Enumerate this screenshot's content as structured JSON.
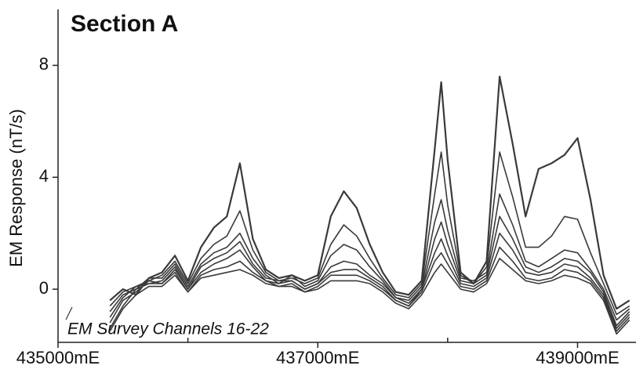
{
  "chart_data": {
    "type": "line",
    "title": "Section A",
    "ylabel": "EM Response (nT/s)",
    "annotation": "EM Survey Channels 16-22",
    "xlim": [
      435000,
      439450
    ],
    "ylim": [
      -1.9,
      10
    ],
    "xticks": [
      {
        "value": 435000,
        "label": "435000mE"
      },
      {
        "value": 437000,
        "label": "437000mE"
      },
      {
        "value": 439000,
        "label": "439000mE"
      }
    ],
    "xminorticks": [
      436000,
      438000
    ],
    "yticks": [
      0,
      4,
      8
    ],
    "color": "#3a3a3a",
    "x": [
      435400,
      435500,
      435600,
      435700,
      435800,
      435900,
      436000,
      436100,
      436200,
      436300,
      436400,
      436500,
      436600,
      436700,
      436800,
      436900,
      437000,
      437100,
      437200,
      437300,
      437400,
      437500,
      437600,
      437700,
      437800,
      437900,
      437950,
      438000,
      438100,
      438200,
      438300,
      438400,
      438500,
      438600,
      438700,
      438800,
      438900,
      439000,
      439100,
      439200,
      439300,
      439400
    ],
    "series": [
      {
        "values": [
          -0.4,
          0.0,
          -0.2,
          0.4,
          0.6,
          1.2,
          0.3,
          1.5,
          2.2,
          2.6,
          4.5,
          1.8,
          0.7,
          0.4,
          0.5,
          0.3,
          0.5,
          2.6,
          3.5,
          2.9,
          1.6,
          0.6,
          -0.1,
          -0.2,
          0.3,
          5.0,
          7.4,
          4.6,
          0.6,
          0.2,
          1.0,
          7.6,
          5.2,
          2.6,
          4.3,
          4.5,
          4.8,
          5.4,
          3.2,
          0.5,
          -0.7,
          -0.4
        ]
      },
      {
        "values": [
          -0.6,
          -0.1,
          0.1,
          0.3,
          0.5,
          1.0,
          0.2,
          1.1,
          1.6,
          1.9,
          2.8,
          1.4,
          0.6,
          0.3,
          0.4,
          0.2,
          0.4,
          1.6,
          2.3,
          1.9,
          1.1,
          0.4,
          -0.2,
          -0.3,
          0.2,
          3.4,
          4.9,
          3.0,
          0.5,
          0.2,
          0.8,
          4.9,
          3.3,
          1.5,
          1.5,
          1.9,
          2.6,
          2.5,
          1.3,
          0.2,
          -0.9,
          -0.6
        ]
      },
      {
        "values": [
          -0.8,
          -0.2,
          0.0,
          0.4,
          0.4,
          0.9,
          0.1,
          0.9,
          1.3,
          1.5,
          2.0,
          1.1,
          0.5,
          0.2,
          0.5,
          0.1,
          0.3,
          1.2,
          1.6,
          1.4,
          0.8,
          0.3,
          -0.3,
          -0.4,
          0.1,
          2.4,
          3.2,
          2.1,
          0.4,
          0.3,
          0.6,
          3.4,
          2.3,
          1.0,
          0.8,
          1.1,
          1.4,
          1.3,
          0.7,
          0.0,
          -1.1,
          -0.7
        ]
      },
      {
        "values": [
          -1.0,
          -0.3,
          0.1,
          0.2,
          0.3,
          0.8,
          0.0,
          0.8,
          1.1,
          1.3,
          1.7,
          0.9,
          0.4,
          0.3,
          0.3,
          0.0,
          0.2,
          0.8,
          1.0,
          0.9,
          0.5,
          0.2,
          -0.3,
          -0.5,
          0.0,
          1.8,
          2.4,
          1.6,
          0.3,
          0.2,
          0.5,
          2.6,
          1.8,
          0.8,
          0.6,
          0.8,
          1.1,
          1.0,
          0.6,
          -0.1,
          -1.3,
          -0.8
        ]
      },
      {
        "values": [
          -1.2,
          -0.4,
          -0.1,
          0.3,
          0.2,
          0.7,
          0.0,
          0.6,
          0.9,
          1.1,
          1.4,
          0.8,
          0.3,
          0.2,
          0.3,
          0.0,
          0.2,
          0.6,
          0.7,
          0.7,
          0.4,
          0.1,
          -0.4,
          -0.6,
          0.0,
          1.3,
          1.8,
          1.2,
          0.2,
          0.1,
          0.4,
          2.0,
          1.4,
          0.6,
          0.5,
          0.6,
          0.9,
          0.8,
          0.4,
          -0.2,
          -1.4,
          -0.9
        ]
      },
      {
        "values": [
          -1.4,
          -0.6,
          0.0,
          0.2,
          0.2,
          0.6,
          -0.1,
          0.5,
          0.7,
          0.8,
          1.0,
          0.6,
          0.3,
          0.1,
          0.2,
          -0.1,
          0.1,
          0.5,
          0.5,
          0.5,
          0.3,
          0.0,
          -0.4,
          -0.6,
          -0.1,
          1.0,
          1.3,
          0.9,
          0.1,
          0.0,
          0.3,
          1.5,
          1.0,
          0.4,
          0.3,
          0.4,
          0.7,
          0.6,
          0.3,
          -0.3,
          -1.5,
          -1.0
        ]
      },
      {
        "values": [
          -1.5,
          -0.7,
          -0.2,
          0.1,
          0.1,
          0.5,
          -0.1,
          0.4,
          0.5,
          0.6,
          0.7,
          0.5,
          0.2,
          0.1,
          0.1,
          -0.1,
          0.0,
          0.3,
          0.3,
          0.3,
          0.2,
          -0.1,
          -0.5,
          -0.7,
          -0.2,
          0.6,
          0.9,
          0.6,
          0.0,
          -0.1,
          0.2,
          1.1,
          0.7,
          0.3,
          0.2,
          0.3,
          0.5,
          0.4,
          0.2,
          -0.4,
          -1.6,
          -1.1
        ]
      }
    ]
  }
}
